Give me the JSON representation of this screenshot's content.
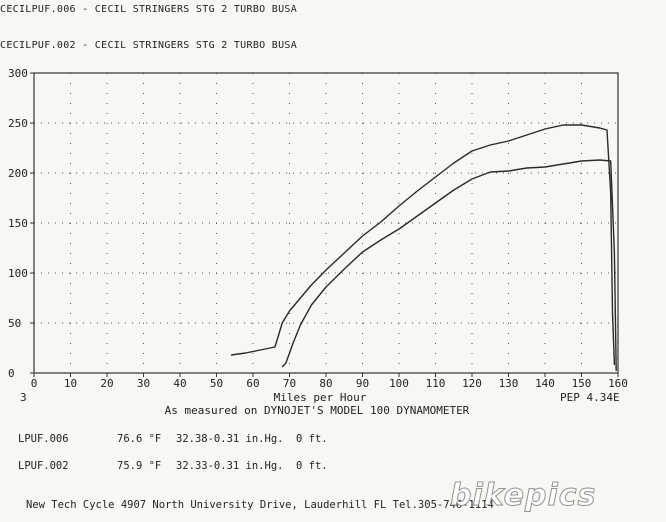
{
  "header": {
    "line1": "CECILPUF.006 - CECIL STRINGERS STG 2 TURBO BUSA",
    "line2": "CECILPUF.002 - CECIL STRINGERS STG 2 TURBO BUSA"
  },
  "chart_data": {
    "type": "line",
    "xlabel": "Miles per Hour",
    "subtitle": "As measured on DYNOJET'S MODEL 100 DYNAMOMETER",
    "xlim": [
      0,
      160
    ],
    "ylim": [
      0,
      300
    ],
    "x_ticks": [
      "0",
      "10",
      "20",
      "30",
      "40",
      "50",
      "60",
      "70",
      "80",
      "90",
      "100",
      "110",
      "120",
      "130",
      "140",
      "150",
      "160"
    ],
    "y_ticks": [
      "300",
      "250",
      "200",
      "150",
      "100",
      "50",
      "0"
    ],
    "grid": true,
    "series": [
      {
        "name": "CECILPUF.006",
        "color": "#2a2a2a",
        "x": [
          54,
          58,
          62,
          66,
          67,
          68,
          70,
          73,
          76,
          80,
          85,
          90,
          95,
          100,
          105,
          110,
          115,
          120,
          125,
          130,
          135,
          140,
          145,
          150,
          155,
          157,
          158,
          158.5,
          159
        ],
        "y": [
          18,
          20,
          23,
          26,
          38,
          50,
          62,
          75,
          88,
          103,
          120,
          137,
          151,
          167,
          182,
          196,
          210,
          222,
          228,
          232,
          238,
          244,
          248,
          248,
          245,
          243,
          180,
          60,
          8
        ]
      },
      {
        "name": "CECILPUF.002",
        "color": "#2a2a2a",
        "x": [
          68,
          69,
          70,
          71,
          73,
          76,
          80,
          85,
          90,
          95,
          100,
          105,
          110,
          115,
          120,
          125,
          130,
          135,
          140,
          145,
          150,
          155,
          158,
          159,
          159.5
        ],
        "y": [
          6,
          10,
          20,
          30,
          48,
          68,
          86,
          104,
          121,
          133,
          144,
          157,
          170,
          183,
          194,
          201,
          202,
          205,
          206,
          209,
          212,
          213,
          212,
          120,
          2
        ]
      }
    ]
  },
  "chart_footer": {
    "left_code": "3",
    "right_code": "PEP 4.34E"
  },
  "runs": [
    {
      "file": "LPUF.006",
      "temp": "76.6 °F",
      "baro": "32.38-0.31 in.Hg.",
      "alt": "0 ft."
    },
    {
      "file": "LPUF.002",
      "temp": "75.9 °F",
      "baro": "32.33-0.31 in.Hg.",
      "alt": "0 ft."
    }
  ],
  "footer": {
    "text": "New Tech Cycle 4907 North University Drive, Lauderhill FL Tel.305-746-1114"
  },
  "watermark": {
    "text": "bikepics"
  }
}
